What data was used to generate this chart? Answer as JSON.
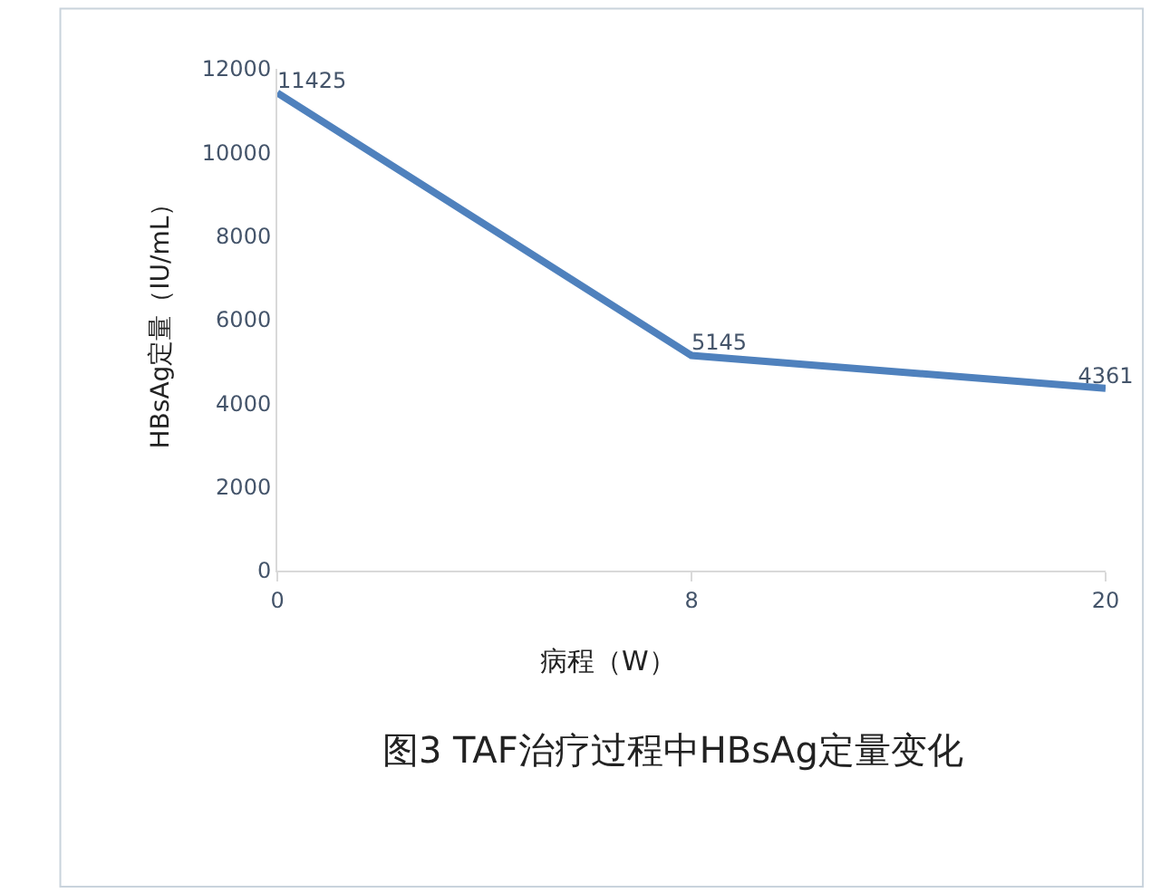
{
  "chart_data": {
    "type": "line",
    "title": "图3 TAF治疗过程中HBsAg定量变化",
    "xlabel": "病程（W）",
    "ylabel": "HBsAg定量（IU/mL）",
    "categories": [
      "0",
      "8",
      "20"
    ],
    "series": [
      {
        "color": "#4f81bd",
        "values": [
          11425,
          5145,
          4361
        ]
      }
    ],
    "ylim": [
      0,
      12000
    ],
    "yticks": [
      0,
      2000,
      4000,
      6000,
      8000,
      10000,
      12000
    ],
    "data_labels": true,
    "legend": false,
    "marker": "none",
    "line_style": "solid"
  }
}
